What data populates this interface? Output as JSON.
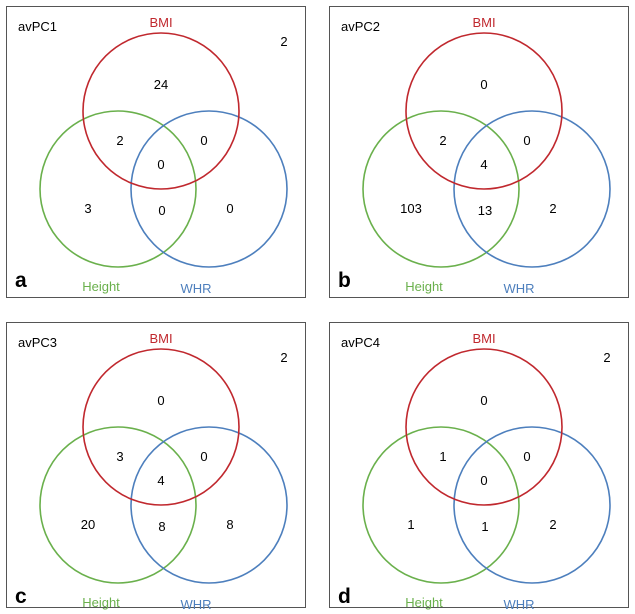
{
  "colors": {
    "BMI": "#c0282e",
    "Height": "#6ab04c",
    "WHR": "#4d7fbd",
    "frame": "#555555"
  },
  "set_names": {
    "BMI": "BMI",
    "Height": "Height",
    "WHR": "WHR"
  },
  "panels": [
    {
      "letter": "a",
      "title": "avPC1",
      "outside": "2",
      "regions": {
        "bmi_only": "24",
        "bmi_height": "2",
        "bmi_whr": "0",
        "all": "0",
        "height_only": "3",
        "height_whr": "0",
        "whr_only": "0"
      }
    },
    {
      "letter": "b",
      "title": "avPC2",
      "outside": "",
      "regions": {
        "bmi_only": "0",
        "bmi_height": "2",
        "bmi_whr": "0",
        "all": "4",
        "height_only": "103",
        "height_whr": "13",
        "whr_only": "2"
      }
    },
    {
      "letter": "c",
      "title": "avPC3",
      "outside": "2",
      "regions": {
        "bmi_only": "0",
        "bmi_height": "3",
        "bmi_whr": "0",
        "all": "4",
        "height_only": "20",
        "height_whr": "8",
        "whr_only": "8"
      }
    },
    {
      "letter": "d",
      "title": "avPC4",
      "outside": "2",
      "regions": {
        "bmi_only": "0",
        "bmi_height": "1",
        "bmi_whr": "0",
        "all": "0",
        "height_only": "1",
        "height_whr": "1",
        "whr_only": "2"
      }
    }
  ]
}
